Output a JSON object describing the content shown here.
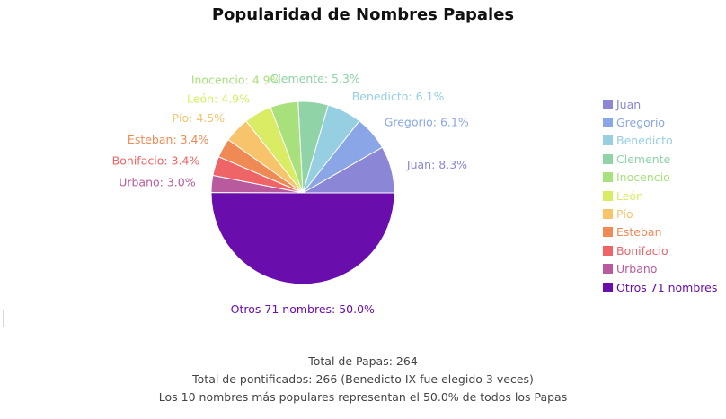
{
  "chart_data": {
    "type": "pie",
    "title": "Popularidad de Nombres Papales",
    "slices": [
      {
        "name": "Juan",
        "value": 8.3,
        "label": "Juan: 8.3%",
        "color": "#8b87d6"
      },
      {
        "name": "Gregorio",
        "value": 6.1,
        "label": "Gregorio: 6.1%",
        "color": "#8aa6e6"
      },
      {
        "name": "Benedicto",
        "value": 6.1,
        "label": "Benedicto: 6.1%",
        "color": "#96cfe2"
      },
      {
        "name": "Clemente",
        "value": 5.3,
        "label": "Clemente: 5.3%",
        "color": "#8fd3a6"
      },
      {
        "name": "Inocencio",
        "value": 4.9,
        "label": "Inocencio: 4.9%",
        "color": "#a8e07c"
      },
      {
        "name": "León",
        "value": 4.9,
        "label": "León: 4.9%",
        "color": "#d9ec63"
      },
      {
        "name": "Pío",
        "value": 4.5,
        "label": "Pío: 4.5%",
        "color": "#f7c46c"
      },
      {
        "name": "Esteban",
        "value": 3.4,
        "label": "Esteban: 3.4%",
        "color": "#f08a55"
      },
      {
        "name": "Bonifacio",
        "value": 3.4,
        "label": "Bonifacio: 3.4%",
        "color": "#ef6467"
      },
      {
        "name": "Urbano",
        "value": 3.0,
        "label": "Urbano: 3.0%",
        "color": "#b95a9e"
      },
      {
        "name": "Otros 71 nombres",
        "value": 50.0,
        "label": "Otros 71 nombres: 50.0%",
        "color": "#6a0dad"
      }
    ],
    "legend_position": "right"
  },
  "footer": {
    "line1": "Total de Papas: 264",
    "line2": "Total de pontificados: 266 (Benedicto IX fue elegido 3 veces)",
    "line3": "Los 10 nombres más populares representan el 50.0% de todos los Papas"
  }
}
